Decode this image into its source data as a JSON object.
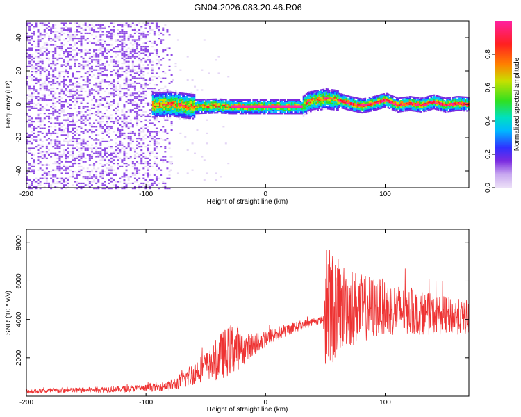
{
  "title": "GN04.2026.083.20.46.R06",
  "chart_data": [
    {
      "type": "heatmap",
      "xlabel": "Height of straight line (km)",
      "ylabel": "Frequency (Hz)",
      "xlim": [
        -200,
        170
      ],
      "ylim": [
        -50,
        50
      ],
      "xticks": [
        -200,
        -100,
        0,
        100
      ],
      "yticks": [
        -40,
        -20,
        0,
        20,
        40
      ],
      "colorbar": {
        "label": "Normalized spectral amplitude",
        "range": [
          0,
          1
        ],
        "ticks": [
          0,
          0.2,
          0.4,
          0.6,
          0.8
        ],
        "colors": [
          "#e8dcf5",
          "#7b2be0",
          "#3030ff",
          "#00b8ff",
          "#00e0c0",
          "#30e020",
          "#c8e000",
          "#ff8000",
          "#ff2020",
          "#ff20a0"
        ]
      },
      "grid": false,
      "ridge": [
        [
          -95,
          0
        ],
        [
          -80,
          0.5
        ],
        [
          -60,
          -1
        ],
        [
          -40,
          -0.5
        ],
        [
          -30,
          -1
        ],
        [
          0,
          -1
        ],
        [
          30,
          -1
        ],
        [
          35,
          2
        ],
        [
          50,
          4
        ],
        [
          60,
          3
        ],
        [
          70,
          1
        ],
        [
          80,
          -0.5
        ],
        [
          90,
          1
        ],
        [
          100,
          3
        ],
        [
          110,
          0
        ],
        [
          120,
          1
        ],
        [
          130,
          0
        ],
        [
          140,
          2
        ],
        [
          150,
          0
        ],
        [
          160,
          1
        ],
        [
          170,
          0.5
        ]
      ]
    },
    {
      "type": "line",
      "xlabel": "Height of straight line (km)",
      "ylabel": "SNR (10 * v/v)",
      "xlim": [
        -200,
        170
      ],
      "ylim": [
        0,
        8700
      ],
      "xticks": [
        -200,
        -100,
        0,
        100
      ],
      "yticks": [
        2000,
        4000,
        6000,
        8000
      ],
      "grid": false,
      "color": "#ee3333",
      "envelope": {
        "x": [
          -200,
          -150,
          -100,
          -80,
          -70,
          -55,
          -45,
          -40,
          -25,
          -20,
          0,
          20,
          40,
          48,
          50,
          52,
          60,
          80,
          100,
          120,
          150,
          170
        ],
        "mean": [
          250,
          320,
          420,
          550,
          800,
          1400,
          1700,
          2000,
          2600,
          2400,
          3000,
          3500,
          3900,
          4000,
          4200,
          4500,
          4700,
          4600,
          4600,
          4400,
          4200,
          4100
        ],
        "amp": [
          120,
          150,
          180,
          260,
          450,
          700,
          800,
          1200,
          1400,
          800,
          500,
          300,
          200,
          200,
          2800,
          3500,
          2500,
          1800,
          1500,
          1200,
          1000,
          900
        ]
      }
    }
  ]
}
